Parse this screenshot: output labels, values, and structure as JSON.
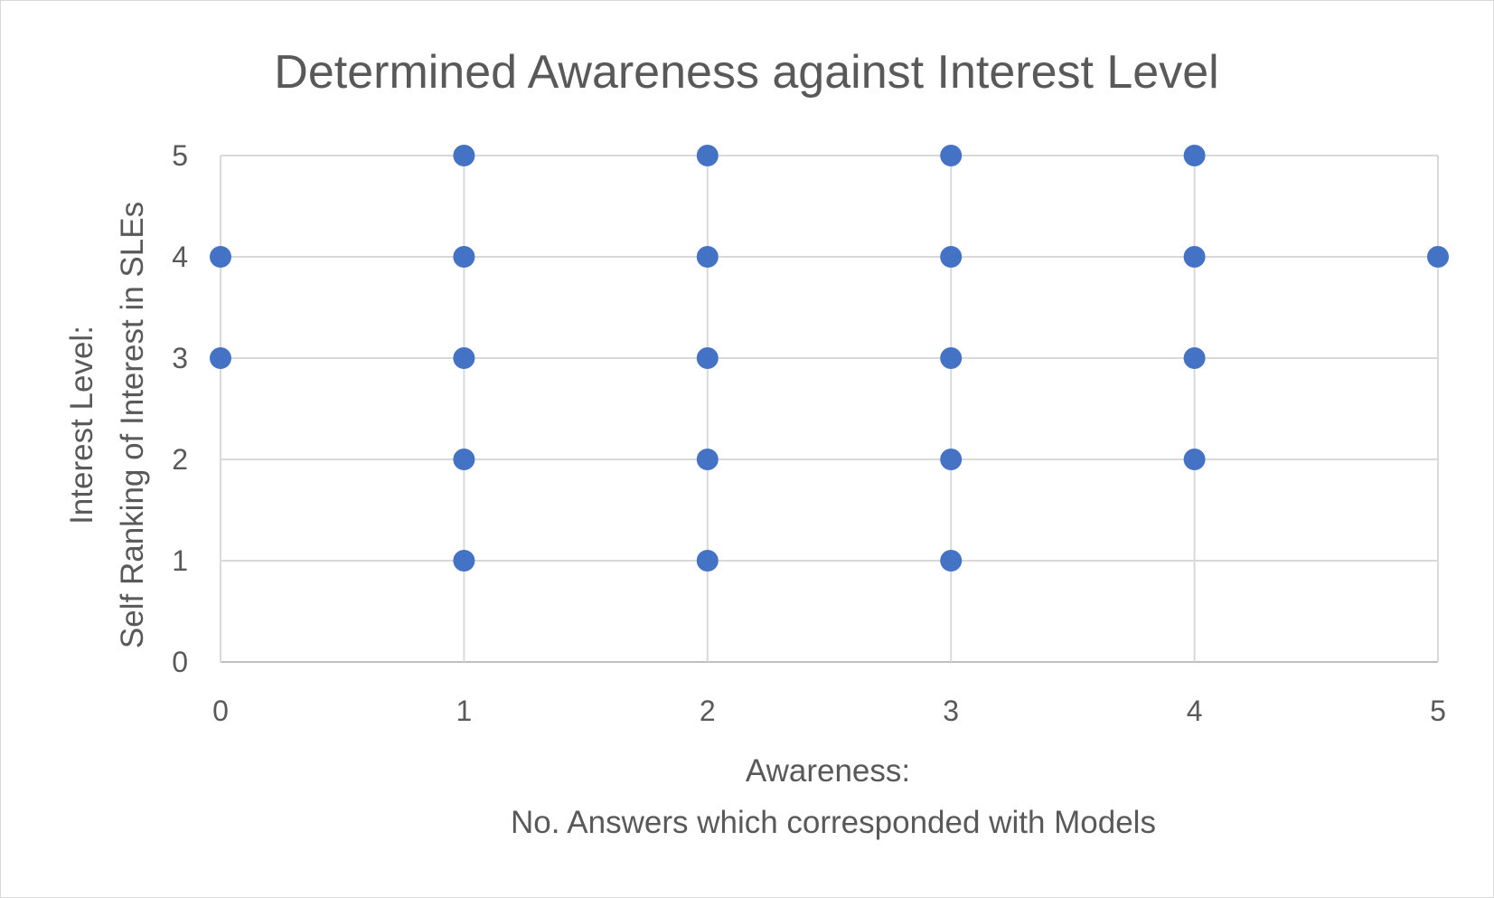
{
  "chart_data": {
    "type": "scatter",
    "title": "Determined Awareness against Interest Level",
    "xlabel_lines": [
      "Awareness:",
      "No. Answers which corresponded with Models"
    ],
    "ylabel_lines": [
      "Interest Level:",
      "Self Ranking of Interest in SLEs"
    ],
    "xlim": [
      0,
      5
    ],
    "ylim": [
      0,
      5
    ],
    "x_ticks": [
      "0",
      "1",
      "2",
      "3",
      "4",
      "5"
    ],
    "y_ticks": [
      "0",
      "1",
      "2",
      "3",
      "4",
      "5"
    ],
    "grid": true,
    "marker_color": "#4472C4",
    "points": [
      {
        "x": 0,
        "y": 4
      },
      {
        "x": 0,
        "y": 3
      },
      {
        "x": 1,
        "y": 5
      },
      {
        "x": 1,
        "y": 4
      },
      {
        "x": 1,
        "y": 3
      },
      {
        "x": 1,
        "y": 2
      },
      {
        "x": 1,
        "y": 1
      },
      {
        "x": 2,
        "y": 5
      },
      {
        "x": 2,
        "y": 4
      },
      {
        "x": 2,
        "y": 3
      },
      {
        "x": 2,
        "y": 2
      },
      {
        "x": 2,
        "y": 1
      },
      {
        "x": 3,
        "y": 5
      },
      {
        "x": 3,
        "y": 4
      },
      {
        "x": 3,
        "y": 3
      },
      {
        "x": 3,
        "y": 2
      },
      {
        "x": 3,
        "y": 1
      },
      {
        "x": 4,
        "y": 5
      },
      {
        "x": 4,
        "y": 4
      },
      {
        "x": 4,
        "y": 3
      },
      {
        "x": 4,
        "y": 2
      },
      {
        "x": 5,
        "y": 4
      }
    ]
  }
}
